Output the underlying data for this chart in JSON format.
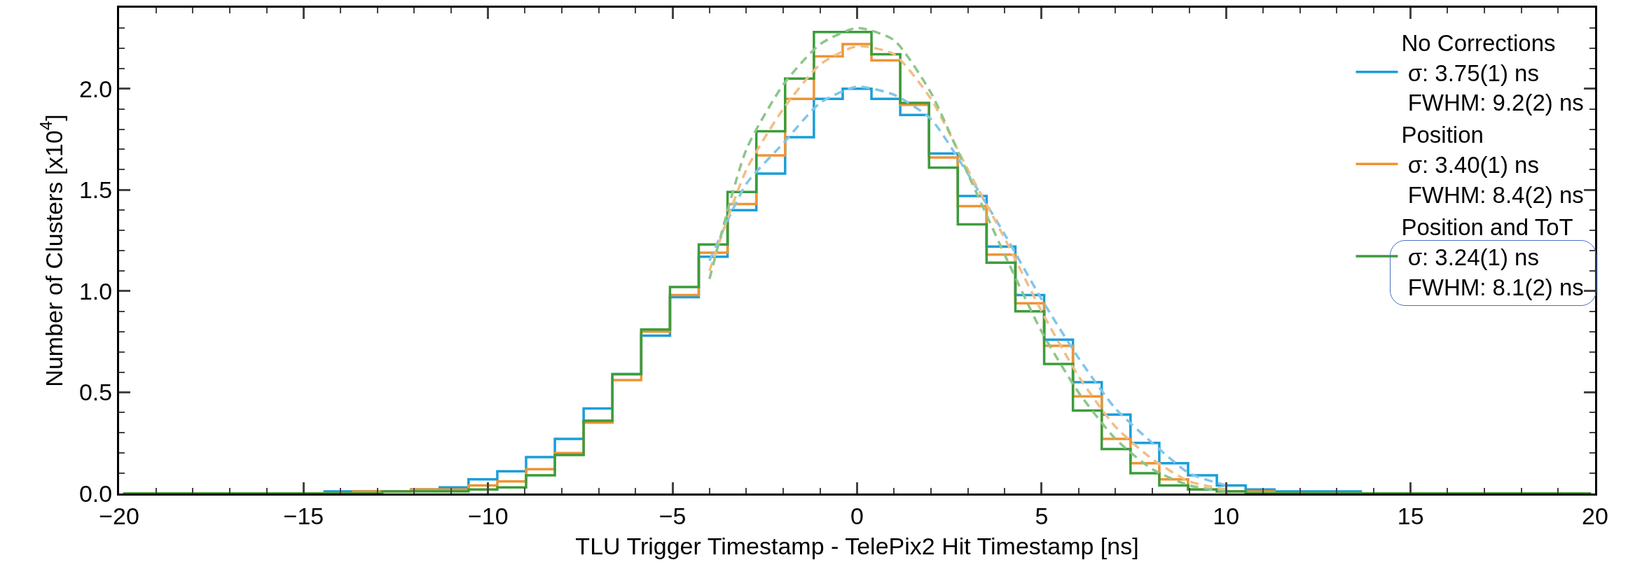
{
  "chart_data": {
    "type": "histogram",
    "xlabel": "TLU Trigger Timestamp - TelePix2 Hit Timestamp [ns]",
    "ylabel": "Number of Clusters [x10$^{4}$]",
    "bins": [
      -19.89,
      -19.11,
      -18.33,
      -17.55,
      -16.77,
      -15.99,
      -15.21,
      -14.43,
      -13.65,
      -12.87,
      -12.09,
      -11.31,
      -10.53,
      -9.75,
      -8.97,
      -8.19,
      -7.41,
      -6.63,
      -5.85,
      -5.07,
      -4.29,
      -3.51,
      -2.73,
      -1.95,
      -1.17,
      -0.39,
      0.39,
      1.17,
      1.95,
      2.73,
      3.51,
      4.29,
      5.07,
      5.85,
      6.63,
      7.41,
      8.19,
      8.97,
      9.75,
      10.53,
      11.31,
      12.09,
      12.87,
      13.65,
      14.43,
      15.21,
      15.99,
      16.77,
      17.55,
      18.33,
      19.11,
      19.89
    ],
    "series": [
      {
        "name": "No Corrections\n σ: 3.75(1) ns\n FWHM: 9.2(2) ns",
        "color": "#1a9ed9",
        "values": [
          0,
          0,
          0,
          0,
          0,
          0,
          0,
          0.01,
          0.01,
          0.01,
          0.02,
          0.03,
          0.07,
          0.11,
          0.18,
          0.27,
          0.42,
          0.59,
          0.78,
          0.97,
          1.17,
          1.4,
          1.58,
          1.76,
          1.95,
          2.0,
          1.95,
          1.87,
          1.68,
          1.47,
          1.22,
          0.98,
          0.76,
          0.55,
          0.39,
          0.25,
          0.15,
          0.09,
          0.04,
          0.02,
          0.01,
          0.01,
          0.01,
          0,
          0,
          0,
          0,
          0,
          0,
          0,
          0
        ]
      },
      {
        "name": "Position\n σ: 3.40(1) ns\n FWHM: 8.4(2) ns",
        "color": "#ee9433",
        "values": [
          0,
          0,
          0,
          0,
          0,
          0,
          0,
          0,
          0.01,
          0.01,
          0.02,
          0.02,
          0.04,
          0.06,
          0.12,
          0.2,
          0.35,
          0.56,
          0.8,
          0.98,
          1.19,
          1.43,
          1.67,
          1.95,
          2.16,
          2.22,
          2.14,
          1.92,
          1.66,
          1.42,
          1.18,
          0.94,
          0.73,
          0.48,
          0.27,
          0.15,
          0.07,
          0.02,
          0.01,
          0.01,
          0,
          0,
          0,
          0,
          0,
          0,
          0,
          0,
          0,
          0,
          0
        ]
      },
      {
        "name": "Position and ToT\n σ: 3.24(1) ns\n FWHM: 8.1(2) ns",
        "color": "#3c9c3c",
        "values": [
          0,
          0,
          0,
          0,
          0,
          0,
          0,
          0,
          0,
          0.01,
          0.01,
          0.01,
          0.02,
          0.03,
          0.09,
          0.19,
          0.36,
          0.59,
          0.81,
          1.02,
          1.23,
          1.49,
          1.79,
          2.05,
          2.28,
          2.28,
          2.17,
          1.93,
          1.61,
          1.33,
          1.14,
          0.9,
          0.64,
          0.41,
          0.22,
          0.1,
          0.04,
          0.02,
          0.01,
          0,
          0,
          0,
          0,
          0,
          0,
          0,
          0,
          0,
          0,
          0,
          0
        ]
      },
      {
        "type": "line",
        "line_style": "dashed",
        "color": "#7fc6ea",
        "x": [
          -4,
          -3,
          -2,
          -1,
          0,
          1,
          2,
          3,
          4,
          5,
          6,
          7,
          8,
          9,
          10
        ],
        "values": [
          1.15,
          1.53,
          1.73,
          1.93,
          2.01,
          1.97,
          1.85,
          1.58,
          1.28,
          0.96,
          0.67,
          0.42,
          0.25,
          0.1,
          0.04
        ]
      },
      {
        "type": "line",
        "line_style": "dashed",
        "color": "#f2bd84",
        "x": [
          -4,
          -3,
          -2,
          -1,
          0,
          1,
          2,
          3,
          4,
          5,
          6,
          7,
          8,
          9,
          10
        ],
        "values": [
          1.1,
          1.6,
          1.9,
          2.12,
          2.21,
          2.17,
          1.95,
          1.6,
          1.26,
          0.9,
          0.58,
          0.33,
          0.17,
          0.06,
          0.02
        ]
      },
      {
        "type": "line",
        "line_style": "dashed",
        "color": "#8cc68a",
        "x": [
          -4,
          -3,
          -2,
          -1,
          0,
          1,
          2,
          3,
          4,
          5,
          6,
          7,
          8,
          9,
          10
        ],
        "values": [
          1.06,
          1.7,
          2.02,
          2.22,
          2.3,
          2.24,
          1.98,
          1.58,
          1.18,
          0.8,
          0.5,
          0.27,
          0.12,
          0.04,
          0.01
        ]
      }
    ],
    "xlim": [
      -20,
      20
    ],
    "xticks": [
      -20,
      {
        "value": -19,
        "label": null
      },
      {
        "value": -18,
        "label": null
      },
      {
        "value": -17,
        "label": null
      },
      {
        "value": -16,
        "label": null
      },
      -15,
      {
        "value": -14,
        "label": null
      },
      {
        "value": -13,
        "label": null
      },
      {
        "value": -12,
        "label": null
      },
      {
        "value": -11,
        "label": null
      },
      -10,
      {
        "value": -9,
        "label": null
      },
      {
        "value": -8,
        "label": null
      },
      {
        "value": -7,
        "label": null
      },
      {
        "value": -6,
        "label": null
      },
      -5,
      {
        "value": -4,
        "label": null
      },
      {
        "value": -3,
        "label": null
      },
      {
        "value": -2,
        "label": null
      },
      {
        "value": -1,
        "label": null
      },
      0,
      {
        "value": 1,
        "label": null
      },
      {
        "value": 2,
        "label": null
      },
      {
        "value": 3,
        "label": null
      },
      {
        "value": 4,
        "label": null
      },
      5,
      {
        "value": 6,
        "label": null
      },
      {
        "value": 7,
        "label": null
      },
      {
        "value": 8,
        "label": null
      },
      {
        "value": 9,
        "label": null
      },
      10,
      {
        "value": 11,
        "label": null
      },
      {
        "value": 12,
        "label": null
      },
      {
        "value": 13,
        "label": null
      },
      {
        "value": 14,
        "label": null
      },
      15,
      {
        "value": 16,
        "label": null
      },
      {
        "value": 17,
        "label": null
      },
      {
        "value": 18,
        "label": null
      },
      {
        "value": 19,
        "label": null
      },
      20
    ],
    "ylim": [
      0,
      2.4
    ],
    "yticks": [
      {
        "value": 0,
        "label": "0.0"
      },
      {
        "value": 0.1,
        "label": null
      },
      {
        "value": 0.2,
        "label": null
      },
      {
        "value": 0.3,
        "label": null
      },
      {
        "value": 0.4,
        "label": null
      },
      0.5,
      {
        "value": 0.6,
        "label": null
      },
      {
        "value": 0.7,
        "label": null
      },
      {
        "value": 0.8,
        "label": null
      },
      {
        "value": 0.9,
        "label": null
      },
      {
        "value": 1,
        "label": "1.0"
      },
      {
        "value": 1.1,
        "label": null
      },
      {
        "value": 1.2,
        "label": null
      },
      {
        "value": 1.3,
        "label": null
      },
      {
        "value": 1.4,
        "label": null
      },
      1.5,
      {
        "value": 1.6,
        "label": null
      },
      {
        "value": 1.7,
        "label": null
      },
      {
        "value": 1.8,
        "label": null
      },
      {
        "value": 1.9,
        "label": null
      },
      {
        "value": 2,
        "label": "2.0"
      },
      {
        "value": 2.1,
        "label": null
      },
      {
        "value": 2.2,
        "label": null
      },
      {
        "value": 2.3,
        "label": null
      }
    ],
    "grid": false,
    "legend": "top right"
  }
}
